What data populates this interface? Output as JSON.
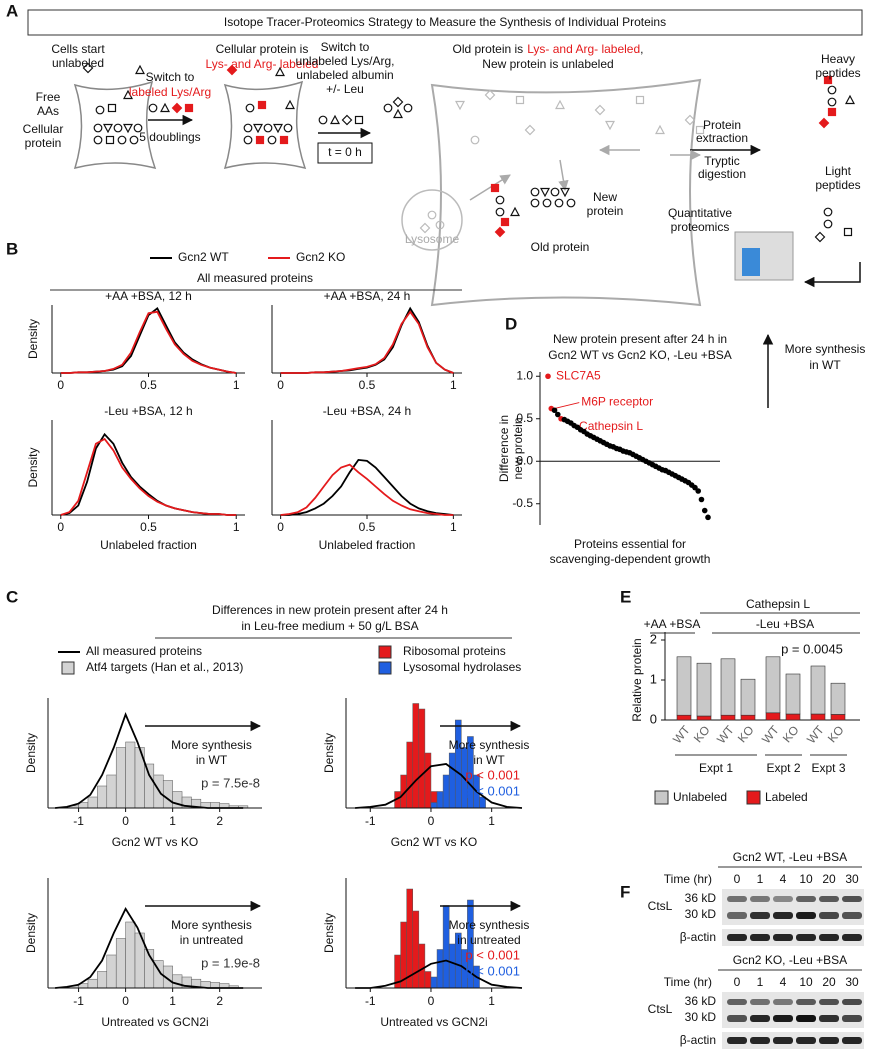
{
  "diagram": {
    "panel": "A",
    "title": "Isotope Tracer-Proteomics Strategy to Measure the Synthesis of Individual Proteins",
    "highlight_color": "#e41a1c",
    "cells_start": [
      "Cells start",
      "unlabeled"
    ],
    "free_aas": [
      "Free",
      "AAs"
    ],
    "cellular_protein": [
      "Cellular",
      "protein"
    ],
    "step1": [
      "Switch to",
      "labeled Lys/Arg",
      "5 doublings"
    ],
    "state2": [
      "Cellular protein is",
      "Lys- and Arg- labeled"
    ],
    "step2": [
      "Switch to",
      "unlabeled Lys/Arg,",
      "unlabeled albumin",
      "+/- Leu"
    ],
    "time_zero": "t = 0 h",
    "state3": [
      "Old protein is",
      "Lys- and Arg- labeled",
      ",",
      "New protein is unlabeled"
    ],
    "lysosome": "Lysosome",
    "new_protein": [
      "New",
      "protein"
    ],
    "old_protein": "Old protein",
    "extraction": [
      "Protein",
      "extraction"
    ],
    "digestion": [
      "Tryptic",
      "digestion"
    ],
    "heavy": [
      "Heavy",
      "peptides"
    ],
    "light": [
      "Light",
      "peptides"
    ],
    "proteomics": [
      "Quantitative",
      "proteomics"
    ]
  },
  "chart_data": [
    {
      "type": "density",
      "panel": "B",
      "title": "All measured proteins",
      "legend": [
        {
          "name": "Gcn2 WT",
          "color": "#000000"
        },
        {
          "name": "Gcn2 KO",
          "color": "#e41a1c"
        }
      ],
      "x": [
        0,
        0.05,
        0.1,
        0.15,
        0.2,
        0.25,
        0.3,
        0.35,
        0.4,
        0.45,
        0.5,
        0.55,
        0.6,
        0.65,
        0.7,
        0.75,
        0.8,
        0.85,
        0.9,
        0.95,
        1
      ],
      "xlim": [
        -0.05,
        1.05
      ],
      "xticks": [
        0,
        0.5,
        1
      ],
      "ylim": [
        0,
        1
      ],
      "ylabel": "Density",
      "xlabel": "Unlabeled fraction",
      "subplots": [
        {
          "title": "+AA +BSA, 12 h",
          "series": [
            {
              "values": [
                0,
                0,
                0.01,
                0.01,
                0.02,
                0.03,
                0.05,
                0.1,
                0.25,
                0.55,
                0.85,
                0.95,
                0.7,
                0.45,
                0.3,
                0.2,
                0.13,
                0.08,
                0.05,
                0.02,
                0
              ]
            },
            {
              "values": [
                0,
                0,
                0.01,
                0.01,
                0.02,
                0.03,
                0.06,
                0.12,
                0.3,
                0.6,
                0.88,
                0.9,
                0.65,
                0.42,
                0.28,
                0.18,
                0.12,
                0.08,
                0.05,
                0.02,
                0
              ]
            }
          ]
        },
        {
          "title": "+AA +BSA, 24 h",
          "series": [
            {
              "values": [
                0,
                0,
                0,
                0,
                0.01,
                0.01,
                0.02,
                0.03,
                0.04,
                0.06,
                0.08,
                0.12,
                0.2,
                0.38,
                0.7,
                0.95,
                0.75,
                0.4,
                0.15,
                0.05,
                0
              ]
            },
            {
              "values": [
                0,
                0,
                0,
                0,
                0.01,
                0.01,
                0.02,
                0.03,
                0.05,
                0.07,
                0.09,
                0.13,
                0.22,
                0.42,
                0.72,
                0.9,
                0.72,
                0.38,
                0.15,
                0.05,
                0
              ]
            }
          ]
        },
        {
          "title": "-Leu +BSA, 12 h",
          "series": [
            {
              "values": [
                0,
                0.02,
                0.1,
                0.35,
                0.7,
                0.85,
                0.75,
                0.55,
                0.4,
                0.3,
                0.22,
                0.15,
                0.1,
                0.07,
                0.05,
                0.03,
                0.02,
                0.01,
                0.01,
                0,
                0
              ]
            },
            {
              "values": [
                0,
                0.03,
                0.15,
                0.45,
                0.75,
                0.8,
                0.68,
                0.5,
                0.38,
                0.28,
                0.2,
                0.14,
                0.1,
                0.07,
                0.05,
                0.03,
                0.02,
                0.01,
                0.01,
                0,
                0
              ]
            }
          ]
        },
        {
          "title": "-Leu +BSA, 24 h",
          "series": [
            {
              "values": [
                0,
                0,
                0.01,
                0.03,
                0.07,
                0.12,
                0.2,
                0.3,
                0.45,
                0.58,
                0.57,
                0.5,
                0.4,
                0.3,
                0.2,
                0.12,
                0.07,
                0.04,
                0.02,
                0.01,
                0
              ]
            },
            {
              "values": [
                0,
                0.01,
                0.03,
                0.08,
                0.18,
                0.3,
                0.42,
                0.5,
                0.53,
                0.45,
                0.38,
                0.3,
                0.22,
                0.15,
                0.1,
                0.06,
                0.04,
                0.02,
                0.01,
                0,
                0
              ]
            }
          ]
        }
      ]
    },
    {
      "type": "histogram",
      "panel": "C",
      "title": [
        "Differences in new protein present after 24 h",
        "in Leu-free medium + 50 g/L BSA"
      ],
      "legend": [
        {
          "name": "All measured proteins",
          "color": "#000000"
        },
        {
          "name": "Atf4 targets (Han et al., 2013)",
          "color": "#d3d3d3"
        },
        {
          "name": "Ribosomal proteins",
          "color": "#e41a1c"
        },
        {
          "name": "Lysosomal hydrolases",
          "color": "#1f5fe0"
        }
      ],
      "ylim": [
        0,
        1
      ],
      "ylabel": "Density",
      "subplots": [
        {
          "xlabel": "Gcn2 WT vs KO",
          "arrow_text": [
            "More synthesis",
            "in WT"
          ],
          "xlim": [
            -1.65,
            2.9
          ],
          "xticks": [
            -1,
            0,
            1,
            2
          ],
          "x": [
            -1.5,
            -1.25,
            -1,
            -0.75,
            -0.5,
            -0.25,
            0,
            0.25,
            0.5,
            0.75,
            1,
            1.25,
            1.5,
            1.75,
            2,
            2.25,
            2.5
          ],
          "curve": [
            0,
            0.01,
            0.04,
            0.12,
            0.3,
            0.55,
            0.85,
            0.6,
            0.3,
            0.13,
            0.05,
            0.02,
            0.01,
            0,
            0,
            0,
            0
          ],
          "histograms": [
            {
              "color": "#d3d3d3",
              "bins": [
                -1.2,
                -1,
                -0.8,
                -0.6,
                -0.4,
                -0.2,
                0,
                0.2,
                0.4,
                0.6,
                0.8,
                1,
                1.2,
                1.4,
                1.6,
                1.8,
                2,
                2.2,
                2.4,
                2.6
              ],
              "counts": [
                0.02,
                0.05,
                0.1,
                0.2,
                0.3,
                0.55,
                0.6,
                0.55,
                0.4,
                0.3,
                0.25,
                0.15,
                0.1,
                0.08,
                0.05,
                0.05,
                0.04,
                0.02,
                0.02
              ]
            }
          ],
          "annotations": [
            {
              "text": "p = 7.5e-8",
              "color": "#333333"
            }
          ]
        },
        {
          "xlabel": "Gcn2 WT vs KO",
          "arrow_text": [
            "More synthesis",
            "in WT"
          ],
          "xlim": [
            -1.4,
            1.5
          ],
          "xticks": [
            -1,
            0,
            1
          ],
          "x": [
            -1.25,
            -1,
            -0.75,
            -0.5,
            -0.25,
            0,
            0.25,
            0.5,
            0.75,
            1,
            1.25,
            1.5
          ],
          "curve": [
            0,
            0.01,
            0.03,
            0.1,
            0.25,
            0.38,
            0.4,
            0.3,
            0.15,
            0.05,
            0.01,
            0
          ],
          "histograms": [
            {
              "color": "#e41a1c",
              "bins": [
                -0.6,
                -0.5,
                -0.4,
                -0.3,
                -0.2,
                -0.1,
                0,
                0.1,
                0.2
              ],
              "counts": [
                0.15,
                0.3,
                0.6,
                0.95,
                0.9,
                0.5,
                0.15,
                0.05
              ]
            },
            {
              "color": "#1f5fe0",
              "bins": [
                0,
                0.1,
                0.2,
                0.3,
                0.4,
                0.5,
                0.6,
                0.7,
                0.8,
                0.9
              ],
              "counts": [
                0.05,
                0.15,
                0.3,
                0.5,
                0.8,
                0.55,
                0.65,
                0.3,
                0.1
              ]
            }
          ],
          "annotations": [
            {
              "text": "p < 0.001",
              "color": "#e41a1c"
            },
            {
              "text": "p < 0.001",
              "color": "#1f5fe0"
            }
          ]
        },
        {
          "xlabel": "Untreated vs GCN2i",
          "arrow_text": [
            "More synthesis",
            "in untreated"
          ],
          "xlim": [
            -1.65,
            2.9
          ],
          "xticks": [
            -1,
            0,
            1,
            2
          ],
          "x": [
            -1.5,
            -1.25,
            -1,
            -0.75,
            -0.5,
            -0.25,
            0,
            0.25,
            0.5,
            0.75,
            1,
            1.25,
            1.5,
            1.75,
            2,
            2.25,
            2.5
          ],
          "curve": [
            0,
            0.01,
            0.03,
            0.1,
            0.25,
            0.5,
            0.72,
            0.55,
            0.3,
            0.13,
            0.05,
            0.02,
            0.01,
            0,
            0,
            0,
            0
          ],
          "histograms": [
            {
              "color": "#d3d3d3",
              "bins": [
                -1.2,
                -1,
                -0.8,
                -0.6,
                -0.4,
                -0.2,
                0,
                0.2,
                0.4,
                0.6,
                0.8,
                1,
                1.2,
                1.4,
                1.6,
                1.8,
                2,
                2.2,
                2.4
              ],
              "counts": [
                0.02,
                0.04,
                0.08,
                0.15,
                0.3,
                0.45,
                0.6,
                0.5,
                0.35,
                0.25,
                0.2,
                0.12,
                0.1,
                0.08,
                0.06,
                0.05,
                0.04,
                0.02
              ]
            }
          ],
          "annotations": [
            {
              "text": "p = 1.9e-8",
              "color": "#333333"
            }
          ]
        },
        {
          "xlabel": "Untreated vs GCN2i",
          "arrow_text": [
            "More synthesis",
            "in untreated"
          ],
          "xlim": [
            -1.4,
            1.5
          ],
          "xticks": [
            -1,
            0,
            1
          ],
          "x": [
            -1.25,
            -1,
            -0.75,
            -0.5,
            -0.25,
            0,
            0.25,
            0.5,
            0.75,
            1,
            1.25,
            1.5
          ],
          "curve": [
            0,
            0,
            0.02,
            0.06,
            0.14,
            0.22,
            0.25,
            0.2,
            0.1,
            0.03,
            0.01,
            0
          ],
          "histograms": [
            {
              "color": "#e41a1c",
              "bins": [
                -0.6,
                -0.5,
                -0.4,
                -0.3,
                -0.2,
                -0.1,
                0,
                0.1
              ],
              "counts": [
                0.3,
                0.6,
                0.9,
                0.7,
                0.4,
                0.15,
                0.05
              ]
            },
            {
              "color": "#1f5fe0",
              "bins": [
                0,
                0.1,
                0.2,
                0.3,
                0.4,
                0.5,
                0.6,
                0.7,
                0.8
              ],
              "counts": [
                0.1,
                0.35,
                0.75,
                0.4,
                0.5,
                0.35,
                0.8,
                0.2
              ]
            }
          ],
          "annotations": [
            {
              "text": "p < 0.001",
              "color": "#e41a1c"
            },
            {
              "text": "p < 0.001",
              "color": "#1f5fe0"
            }
          ]
        }
      ]
    },
    {
      "type": "scatter",
      "panel": "D",
      "title": [
        "New protein present after 24 h in",
        "Gcn2 WT vs Gcn2 KO, -Leu +BSA"
      ],
      "ylabel": [
        "Difference in",
        "new protein"
      ],
      "xlabel": [
        "Proteins essential for",
        "scavenging-dependent growth"
      ],
      "arrow_text": [
        "More synthesis",
        "in WT"
      ],
      "values": [
        1.0,
        0.62,
        0.6,
        0.55,
        0.5,
        0.49,
        0.47,
        0.45,
        0.42,
        0.4,
        0.37,
        0.35,
        0.32,
        0.3,
        0.28,
        0.26,
        0.24,
        0.22,
        0.2,
        0.18,
        0.17,
        0.15,
        0.14,
        0.12,
        0.11,
        0.1,
        0.08,
        0.06,
        0.04,
        0.02,
        0.0,
        -0.02,
        -0.04,
        -0.06,
        -0.08,
        -0.1,
        -0.11,
        -0.13,
        -0.15,
        -0.17,
        -0.19,
        -0.21,
        -0.23,
        -0.25,
        -0.28,
        -0.31,
        -0.35,
        -0.45,
        -0.58,
        -0.66
      ],
      "labels": [
        "SLC7A5",
        "M6P receptor",
        null,
        null,
        "Cathepsin L",
        null,
        null,
        null,
        null,
        null,
        null,
        null,
        null,
        null,
        null,
        null,
        null,
        null,
        null,
        null,
        null,
        null,
        null,
        null,
        null,
        null,
        null,
        null,
        null,
        null,
        null,
        null,
        null,
        null,
        null,
        null,
        null,
        null,
        null,
        null,
        null,
        null,
        null,
        null,
        null,
        null,
        null,
        null,
        null,
        null
      ],
      "color": "#000000",
      "highlight_color": "#e41a1c",
      "ylim": [
        -0.75,
        1.05
      ],
      "yticks": [
        -0.5,
        {
          "value": 0,
          "label": "0.0"
        },
        0.5,
        {
          "value": 1,
          "label": "1.0"
        }
      ],
      "hline": 0
    },
    {
      "type": "stacked-bar",
      "panel": "E",
      "title": "Cathepsin L",
      "groups": [
        "+AA +BSA",
        "-Leu +BSA"
      ],
      "experiments": [
        "Expt 1",
        "Expt 2",
        "Expt 3"
      ],
      "annotation": "p = 0.0045",
      "ylabel": "Relative protein",
      "categories": [
        "WT",
        "KO",
        "WT",
        "KO",
        "WT",
        "KO",
        "WT",
        "KO"
      ],
      "series": [
        {
          "name": "Unlabeled",
          "color": "#c8c8c8",
          "values": [
            1.46,
            1.32,
            1.41,
            0.9,
            1.4,
            1.0,
            1.2,
            0.78
          ]
        },
        {
          "name": "Labeled",
          "color": "#e41a1c",
          "values": [
            0.12,
            0.1,
            0.12,
            0.12,
            0.18,
            0.15,
            0.15,
            0.14
          ]
        }
      ],
      "ylim": [
        0,
        2.2
      ],
      "yticks": [
        0,
        1,
        2
      ]
    }
  ],
  "blot": {
    "panel": "F",
    "blocks": [
      {
        "title": "Gcn2 WT, -Leu +BSA",
        "time_label": "Time (hr)",
        "times": [
          0,
          1,
          4,
          10,
          20,
          30
        ],
        "protein": "CtsL",
        "markers": [
          "36 kD",
          "30 kD"
        ],
        "loading": "β-actin"
      },
      {
        "title": "Gcn2 KO, -Leu +BSA",
        "time_label": "Time (hr)",
        "times": [
          0,
          1,
          4,
          10,
          20,
          30
        ],
        "protein": "CtsL",
        "markers": [
          "36 kD",
          "30 kD"
        ],
        "loading": "β-actin"
      }
    ]
  }
}
